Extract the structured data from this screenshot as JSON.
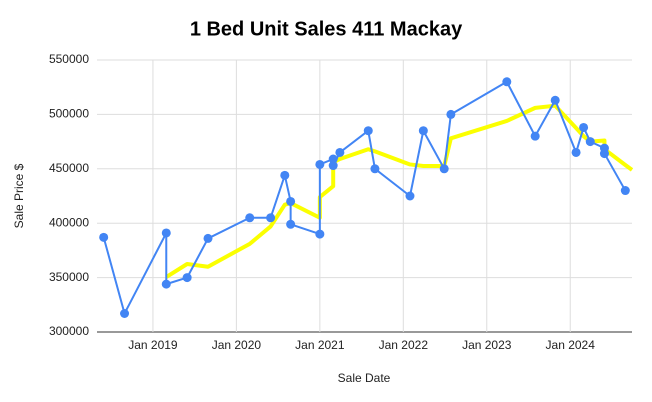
{
  "chart_data": {
    "type": "line",
    "title": "1 Bed Unit Sales 411 Mackay",
    "x_label": "Sale Date",
    "y_label": "Sale Price $",
    "xlim": [
      2018.33,
      2024.74
    ],
    "xticks": [
      {
        "value": 2019,
        "label": "Jan 2019"
      },
      {
        "value": 2020,
        "label": "Jan 2020"
      },
      {
        "value": 2021,
        "label": "Jan 2021"
      },
      {
        "value": 2022,
        "label": "Jan 2022"
      },
      {
        "value": 2023,
        "label": "Jan 2023"
      },
      {
        "value": 2024,
        "label": "Jan 2024"
      }
    ],
    "ylim": [
      300000,
      550000
    ],
    "yticks": [
      300000,
      350000,
      400000,
      450000,
      500000,
      550000
    ],
    "grid": true,
    "series": [
      {
        "color": "#fbff00",
        "markers": false,
        "line_width": 4,
        "x": [
          2019.16,
          2019.41,
          2019.66,
          2020.16,
          2020.41,
          2020.58,
          2020.65,
          2021.0,
          2021.0,
          2021.16,
          2021.16,
          2021.24,
          2021.58,
          2021.66,
          2022.08,
          2022.24,
          2022.49,
          2022.57,
          2023.24,
          2023.58,
          2023.82,
          2024.07,
          2024.16,
          2024.24,
          2024.41,
          2024.41,
          2024.66,
          2024.74
        ],
        "values": [
          350500,
          362500,
          360000,
          381000,
          397000,
          417000,
          418500,
          405000,
          424000,
          434000,
          456000,
          459000,
          468000,
          466000,
          454000,
          452600,
          452600,
          478000,
          494000,
          506000,
          508000,
          487500,
          480000,
          475000,
          476000,
          468000,
          453500,
          449000
        ]
      },
      {
        "color": "#4285f4",
        "markers": true,
        "line_width": 2,
        "x": [
          2018.41,
          2018.66,
          2019.16,
          2019.16,
          2019.41,
          2019.66,
          2020.16,
          2020.41,
          2020.58,
          2020.65,
          2020.65,
          2021.0,
          2021.0,
          2021.16,
          2021.16,
          2021.24,
          2021.58,
          2021.66,
          2022.08,
          2022.24,
          2022.49,
          2022.57,
          2023.24,
          2023.58,
          2023.82,
          2024.07,
          2024.16,
          2024.24,
          2024.41,
          2024.41,
          2024.66
        ],
        "values": [
          387000,
          317000,
          391000,
          344000,
          350000,
          386000,
          405000,
          405000,
          444000,
          420000,
          399000,
          390000,
          454000,
          459000,
          453000,
          465000,
          485000,
          450000,
          425000,
          485000,
          450000,
          500000,
          530000,
          480000,
          513000,
          465000,
          488000,
          475000,
          469000,
          464000,
          430000
        ]
      }
    ]
  }
}
